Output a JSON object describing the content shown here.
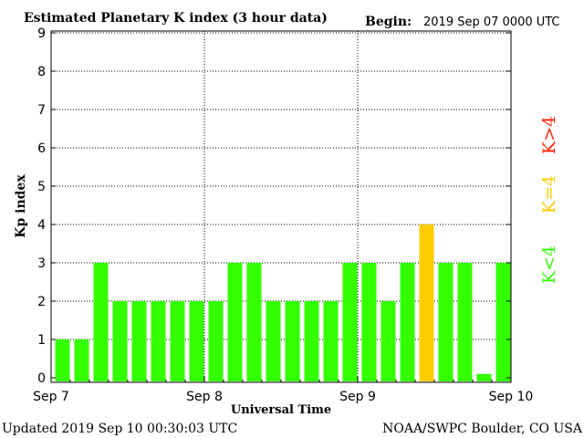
{
  "chart_data": {
    "type": "bar",
    "title": "Estimated Planetary K index (3 hour data)",
    "begin_label": "Begin:",
    "begin_value": "2019 Sep 07 0000 UTC",
    "xlabel": "Universal Time",
    "ylabel": "Kp index",
    "ylim": [
      0,
      9
    ],
    "yticks": [
      "0",
      "1",
      "2",
      "3",
      "4",
      "5",
      "6",
      "7",
      "8",
      "9"
    ],
    "xtick_labels": [
      "Sep 7",
      "Sep 8",
      "Sep 9",
      "Sep 10"
    ],
    "grid": true,
    "values": [
      1,
      1,
      3,
      2,
      2,
      2,
      2,
      2,
      2,
      3,
      3,
      2,
      2,
      2,
      2,
      3,
      3,
      2,
      3,
      4,
      3,
      3,
      0.1,
      3
    ],
    "legend": [
      {
        "label": "K<4",
        "color": "#33ff00"
      },
      {
        "label": "K=4",
        "color": "#ffcc00"
      },
      {
        "label": "K>4",
        "color": "#ff2200"
      }
    ],
    "updated": "Updated 2019 Sep 10 00:30:03 UTC",
    "credit": "NOAA/SWPC Boulder, CO USA"
  }
}
